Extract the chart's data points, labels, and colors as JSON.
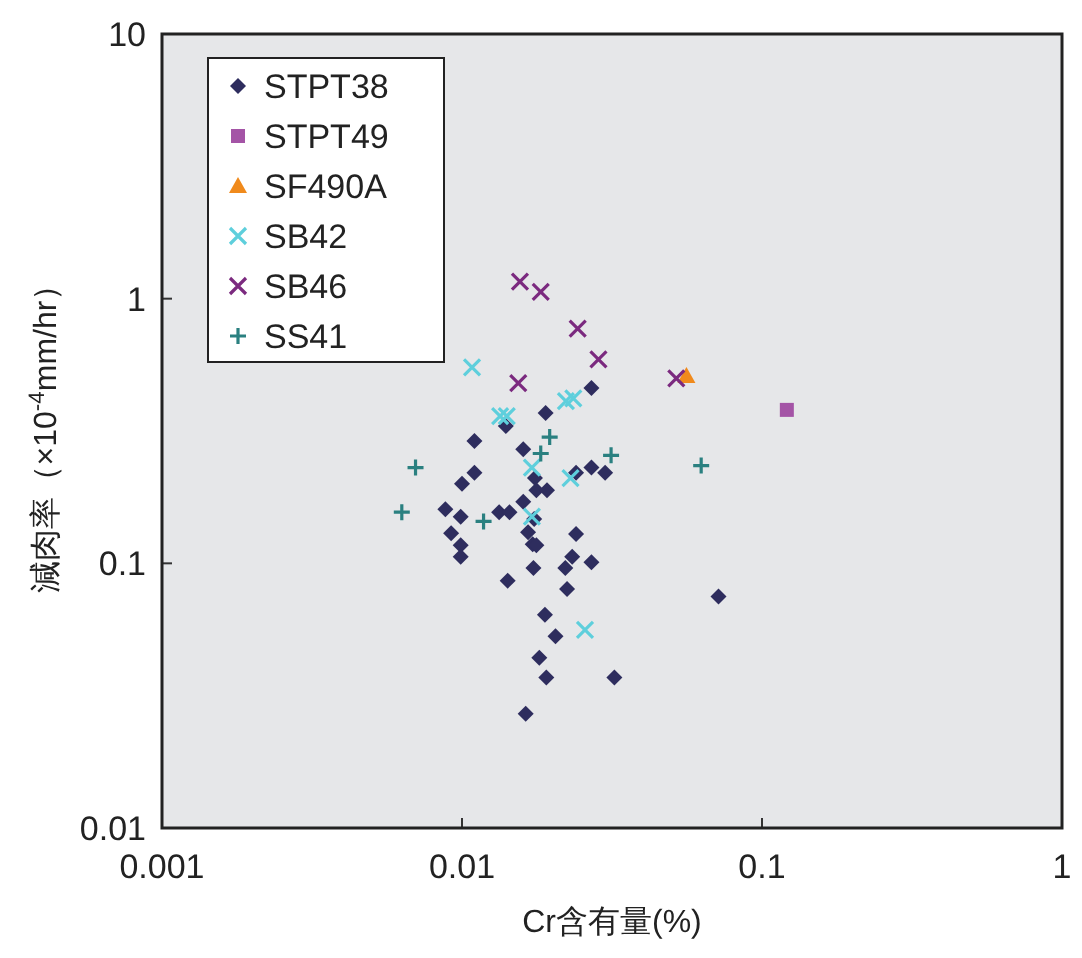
{
  "chart_data": {
    "type": "scatter",
    "xlabel": "Cr含有量(%)",
    "ylabel": "減肉率（×10$^{-4}$mm/hr）",
    "log": "xy",
    "grid": false,
    "legend": "top left",
    "xlim": [
      0.001,
      1
    ],
    "ylim": [
      0.01,
      10
    ],
    "xticks": [
      0.001,
      0.01,
      0.1,
      1
    ],
    "yticks": [
      0.01,
      0.1,
      1,
      10
    ],
    "series": [
      {
        "name": "STPT38",
        "color": "#2e2d5e",
        "marker": "diamond",
        "x": [
          0.027,
          0.019,
          0.011,
          0.014,
          0.016,
          0.011,
          0.0175,
          0.024,
          0.027,
          0.01,
          0.03,
          0.0088,
          0.0099,
          0.0092,
          0.0099,
          0.0099,
          0.0133,
          0.0144,
          0.016,
          0.0177,
          0.0192,
          0.0174,
          0.0166,
          0.0172,
          0.0177,
          0.0173,
          0.0142,
          0.024,
          0.0233,
          0.0221,
          0.027,
          0.0224,
          0.0189,
          0.0205,
          0.0181,
          0.0191,
          0.0163,
          0.0716,
          0.0322
        ],
        "values": [
          0.46,
          0.37,
          0.29,
          0.33,
          0.27,
          0.22,
          0.21,
          0.22,
          0.23,
          0.2,
          0.22,
          0.16,
          0.15,
          0.13,
          0.117,
          0.106,
          0.156,
          0.156,
          0.171,
          0.189,
          0.189,
          0.147,
          0.131,
          0.118,
          0.117,
          0.096,
          0.086,
          0.129,
          0.106,
          0.096,
          0.101,
          0.08,
          0.064,
          0.053,
          0.044,
          0.037,
          0.027,
          0.075,
          0.037
        ]
      },
      {
        "name": "STPT49",
        "color": "#a454a6",
        "marker": "square",
        "x": [
          0.121
        ],
        "values": [
          0.38
        ]
      },
      {
        "name": "SF490A",
        "color": "#f08a1c",
        "marker": "triangle",
        "x": [
          0.056
        ],
        "values": [
          0.51
        ]
      },
      {
        "name": "SB42",
        "color": "#5ecfdc",
        "marker": "cross",
        "x": [
          0.0108,
          0.0222,
          0.0235,
          0.0134,
          0.0141,
          0.0171,
          0.023,
          0.0171,
          0.0257
        ],
        "values": [
          0.55,
          0.41,
          0.42,
          0.36,
          0.36,
          0.23,
          0.21,
          0.15,
          0.056
        ]
      },
      {
        "name": "SB46",
        "color": "#7b2a7f",
        "marker": "cross",
        "x": [
          0.0156,
          0.0183,
          0.0243,
          0.0285,
          0.0154,
          0.0518
        ],
        "values": [
          1.16,
          1.06,
          0.77,
          0.59,
          0.48,
          0.5
        ]
      },
      {
        "name": "SS41",
        "color": "#2a8080",
        "marker": "plus",
        "x": [
          0.007,
          0.0196,
          0.0183,
          0.0063,
          0.0118,
          0.0314,
          0.0627
        ],
        "values": [
          0.23,
          0.3,
          0.26,
          0.156,
          0.144,
          0.256,
          0.234
        ]
      }
    ]
  }
}
